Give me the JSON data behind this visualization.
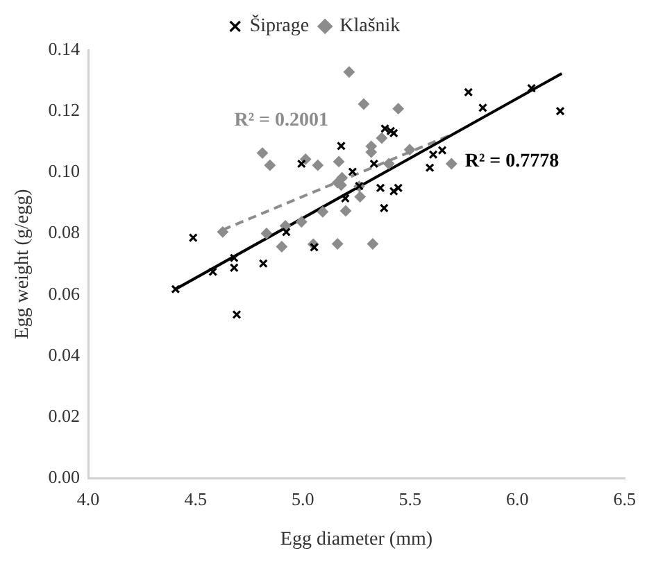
{
  "chart_data": {
    "type": "scatter",
    "xlabel": "Egg diameter (mm)",
    "ylabel": "Egg weight (g/egg)",
    "legend": "top",
    "grid": false,
    "xlim": [
      4.0,
      6.5
    ],
    "xticks": [
      {
        "value": 4.0,
        "label": "4.0"
      },
      {
        "value": 4.5,
        "label": "4.5"
      },
      {
        "value": 5.0,
        "label": "5.0"
      },
      {
        "value": 5.5,
        "label": "5.5"
      },
      {
        "value": 6.0,
        "label": "6.0"
      },
      {
        "value": 6.5,
        "label": "6.5"
      }
    ],
    "ylim": [
      0,
      0.14
    ],
    "yticks": [
      {
        "value": 0,
        "label": "0.00"
      },
      {
        "value": 0.02,
        "label": "0.02"
      },
      {
        "value": 0.04,
        "label": "0.04"
      },
      {
        "value": 0.06,
        "label": "0.06"
      },
      {
        "value": 0.08,
        "label": "0.08"
      },
      {
        "value": 0.1,
        "label": "0.10"
      },
      {
        "value": 0.12,
        "label": "0.12"
      },
      {
        "value": 0.14,
        "label": "0.14"
      }
    ],
    "series": [
      {
        "name": "Šiprage",
        "marker": "cross",
        "color": "#000000",
        "x": [
          4.407,
          4.489,
          4.581,
          4.68,
          4.68,
          4.692,
          4.816,
          4.923,
          4.994,
          5.053,
          5.179,
          5.198,
          5.232,
          5.263,
          5.332,
          5.362,
          5.379,
          5.383,
          5.41,
          5.424,
          5.424,
          5.445,
          5.592,
          5.608,
          5.65,
          5.772,
          5.839,
          6.066,
          6.2
        ],
        "values": [
          0.0618,
          0.0786,
          0.0675,
          0.072,
          0.0688,
          0.0535,
          0.0702,
          0.0805,
          0.1028,
          0.0755,
          0.1086,
          0.0915,
          0.1002,
          0.0955,
          0.1028,
          0.0949,
          0.0883,
          0.1143,
          0.1135,
          0.1128,
          0.0938,
          0.0949,
          0.1015,
          0.1058,
          0.1072,
          0.1262,
          0.1211,
          0.1275,
          0.12
        ]
      },
      {
        "name": "Klašnik",
        "marker": "diamond",
        "color": "#8c8c8c",
        "x": [
          4.627,
          4.812,
          4.831,
          4.847,
          4.902,
          4.919,
          4.994,
          5.013,
          5.049,
          5.07,
          5.093,
          5.162,
          5.168,
          5.162,
          5.183,
          5.179,
          5.2,
          5.216,
          5.263,
          5.267,
          5.284,
          5.319,
          5.319,
          5.326,
          5.368,
          5.401,
          5.445,
          5.498,
          5.693
        ],
        "values": [
          0.0805,
          0.1063,
          0.08,
          0.1023,
          0.0757,
          0.0825,
          0.0838,
          0.1043,
          0.0765,
          0.1023,
          0.0871,
          0.0766,
          0.1035,
          0.0966,
          0.0982,
          0.0958,
          0.0874,
          0.1328,
          0.0954,
          0.092,
          0.1223,
          0.1085,
          0.1066,
          0.0766,
          0.1112,
          0.1028,
          0.1208,
          0.1074,
          0.1028
        ]
      },
      {
        "type": "line",
        "line_style": "solid",
        "marker": "none",
        "color": "#000000",
        "x": [
          4.407,
          6.207
        ],
        "values": [
          0.0618,
          0.1323
        ]
      },
      {
        "type": "line",
        "line_style": "dashed",
        "marker": "none",
        "color": "#8c8c8c",
        "x": [
          4.627,
          5.693
        ],
        "values": [
          0.0812,
          0.1123
        ]
      }
    ],
    "annotations": [
      "R² = 0.7778",
      "R² = 0.2001"
    ]
  }
}
